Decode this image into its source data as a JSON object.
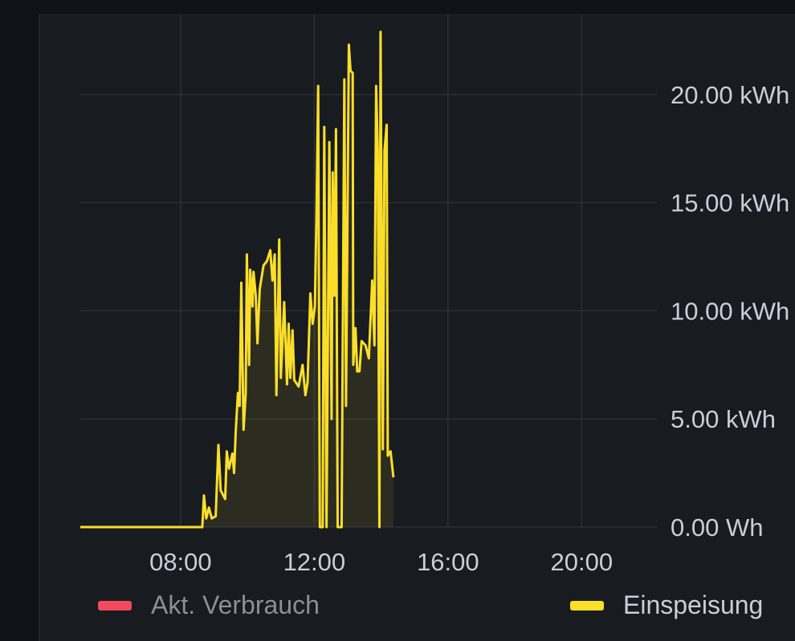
{
  "chart_data": {
    "type": "area",
    "title": "",
    "xlabel": "",
    "ylabel": "",
    "x_ticks": [
      "08:00",
      "12:00",
      "16:00",
      "20:00"
    ],
    "y_ticks": [
      "0.00 Wh",
      "5.00 kWh",
      "10.00 kWh",
      "15.00 kWh",
      "20.00 kWh"
    ],
    "y_tick_values": [
      0,
      5,
      10,
      15,
      20
    ],
    "xlim": [
      "05:00",
      "22:15"
    ],
    "ylim": [
      0,
      24
    ],
    "grid": true,
    "legend_placement": "bottom",
    "series": [
      {
        "name": "Akt. Verbrauch",
        "color": "#f2495c",
        "hidden": true,
        "points": []
      },
      {
        "name": "Einspeisung",
        "color": "#fade2a",
        "fill": true,
        "points": [
          [
            "05:00",
            0
          ],
          [
            "08:22",
            0
          ],
          [
            "08:39",
            0
          ],
          [
            "08:42",
            1.46
          ],
          [
            "08:46",
            0.4
          ],
          [
            "08:51",
            0.9
          ],
          [
            "08:56",
            0.4
          ],
          [
            "09:03",
            0.5
          ],
          [
            "09:08",
            3.8
          ],
          [
            "09:12",
            1.7
          ],
          [
            "09:20",
            1.3
          ],
          [
            "09:23",
            3.5
          ],
          [
            "09:27",
            2.7
          ],
          [
            "09:33",
            3.4
          ],
          [
            "09:36",
            2.5
          ],
          [
            "09:39",
            4.4
          ],
          [
            "09:43",
            6.2
          ],
          [
            "09:46",
            5.6
          ],
          [
            "09:49",
            11.3
          ],
          [
            "09:53",
            4.5
          ],
          [
            "09:57",
            6.2
          ],
          [
            "09:59",
            12.6
          ],
          [
            "10:03",
            7.5
          ],
          [
            "10:05",
            11.9
          ],
          [
            "10:09",
            10.2
          ],
          [
            "10:11",
            11.8
          ],
          [
            "10:15",
            10.7
          ],
          [
            "10:18",
            8.5
          ],
          [
            "10:22",
            11.0
          ],
          [
            "10:29",
            12.1
          ],
          [
            "10:35",
            12.3
          ],
          [
            "10:41",
            12.8
          ],
          [
            "10:45",
            11.4
          ],
          [
            "10:49",
            12.6
          ],
          [
            "10:52",
            6.1
          ],
          [
            "10:55",
            10.1
          ],
          [
            "10:57",
            13.3
          ],
          [
            "11:00",
            6.9
          ],
          [
            "11:06",
            10.4
          ],
          [
            "11:11",
            6.6
          ],
          [
            "11:14",
            9.4
          ],
          [
            "11:17",
            6.9
          ],
          [
            "11:21",
            9.1
          ],
          [
            "11:24",
            6.8
          ],
          [
            "11:32",
            6.5
          ],
          [
            "11:39",
            7.5
          ],
          [
            "11:44",
            6.1
          ],
          [
            "11:48",
            6.7
          ],
          [
            "11:53",
            10.8
          ],
          [
            "11:57",
            9.4
          ],
          [
            "12:01",
            10.2
          ],
          [
            "12:04",
            14.4
          ],
          [
            "12:07",
            20.4
          ],
          [
            "12:10",
            0
          ],
          [
            "12:15",
            0
          ],
          [
            "12:18",
            18.5
          ],
          [
            "12:22",
            0
          ],
          [
            "12:27",
            17.8
          ],
          [
            "12:31",
            5.0
          ],
          [
            "12:33",
            16.4
          ],
          [
            "12:36",
            10.7
          ],
          [
            "12:39",
            18.4
          ],
          [
            "12:42",
            0
          ],
          [
            "12:49",
            0
          ],
          [
            "12:54",
            20.7
          ],
          [
            "12:57",
            5.6
          ],
          [
            "13:02",
            22.3
          ],
          [
            "13:05",
            21.1
          ],
          [
            "13:09",
            21.0
          ],
          [
            "13:10",
            7.5
          ],
          [
            "13:14",
            9.2
          ],
          [
            "13:17",
            7.2
          ],
          [
            "13:21",
            7.2
          ],
          [
            "13:25",
            8.6
          ],
          [
            "13:32",
            8.4
          ],
          [
            "13:38",
            7.8
          ],
          [
            "13:44",
            11.4
          ],
          [
            "13:48",
            8.4
          ],
          [
            "13:51",
            20.4
          ],
          [
            "13:54",
            17.4
          ],
          [
            "13:57",
            0
          ],
          [
            "13:59",
            22.9
          ],
          [
            "14:03",
            3.6
          ],
          [
            "14:06",
            17.4
          ],
          [
            "14:10",
            18.6
          ],
          [
            "14:12",
            3.3
          ],
          [
            "14:17",
            3.5
          ],
          [
            "14:22",
            2.3
          ]
        ]
      }
    ]
  },
  "colors": {
    "background": "#111217",
    "panel": "#181b1f",
    "grid": "#2c2f35",
    "text": "#ccccdc",
    "legend_dimmed": "#8e8e97"
  }
}
